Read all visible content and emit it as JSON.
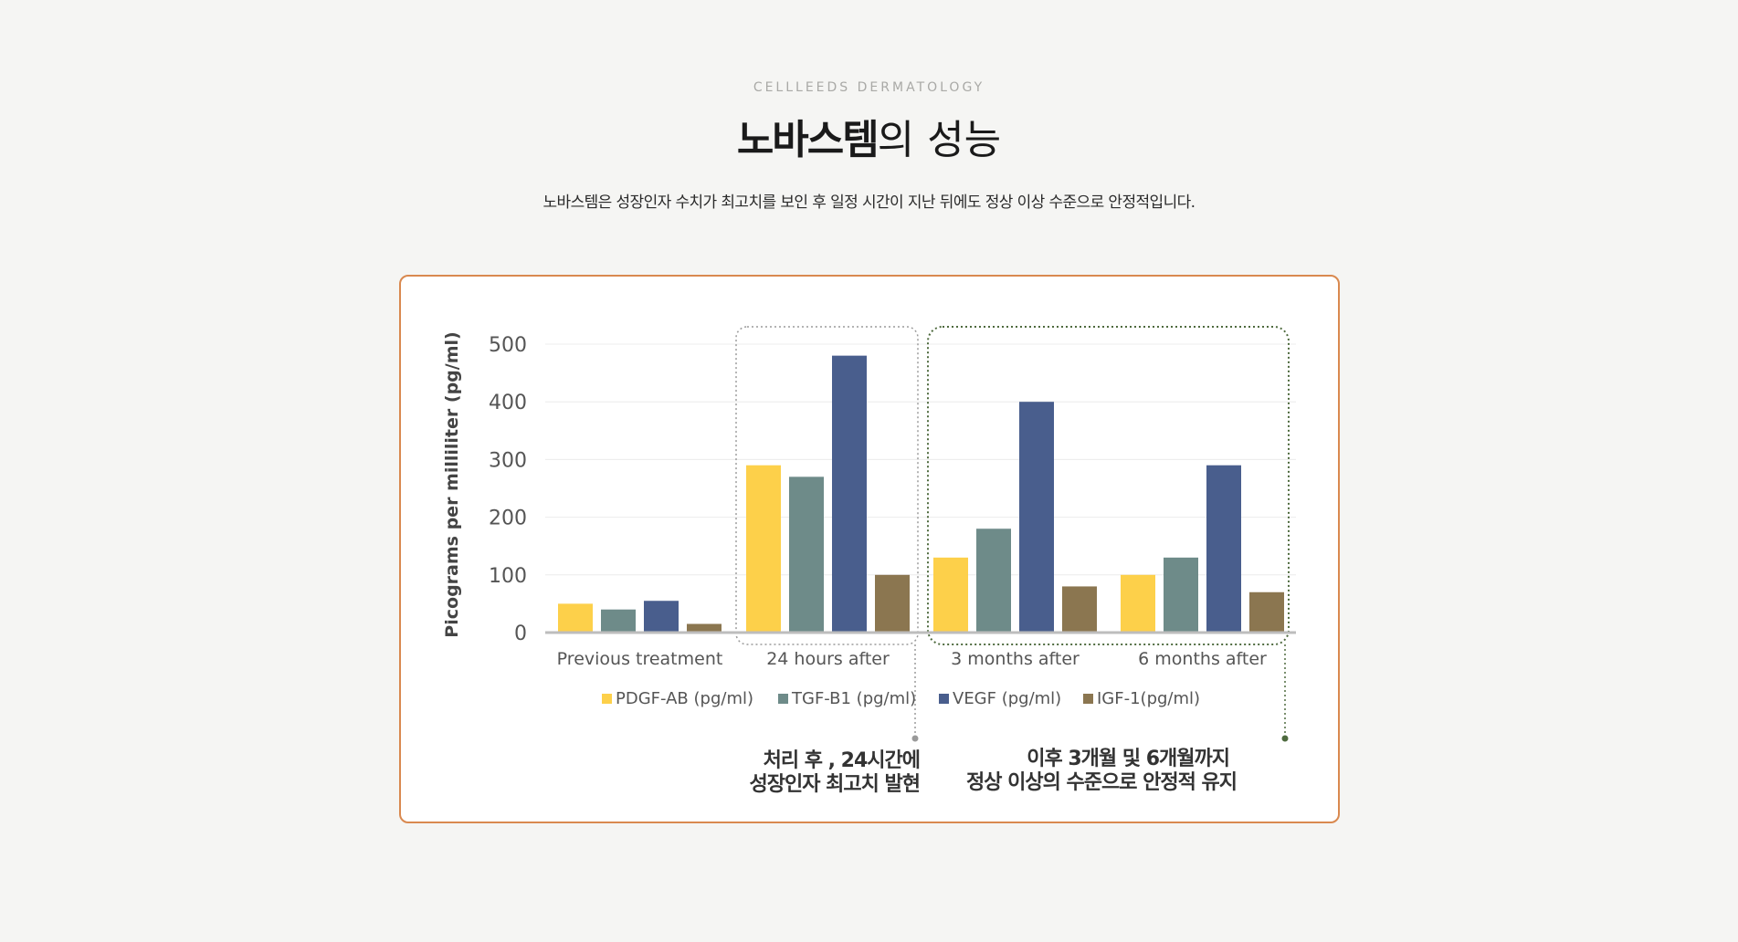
{
  "header": {
    "eyebrow": "CELLLEEDS DERMATOLOGY",
    "title_brand": "노바스템",
    "title_rest": "의 성능",
    "description": "노바스템은 성장인자 수치가 최고치를 보인 후 일정 시간이 지난 뒤에도 정상 이상 수준으로 안정적입니다."
  },
  "chart_data": {
    "type": "bar",
    "title": "",
    "xlabel": "",
    "ylabel": "Picograms per milliliter (pg/ml)",
    "ylim": [
      0,
      500
    ],
    "yticks": [
      0,
      100,
      200,
      300,
      400,
      500
    ],
    "grid": true,
    "legend_position": "bottom",
    "categories": [
      "Previous treatment",
      "24 hours after",
      "3 months after",
      "6 months after"
    ],
    "series": [
      {
        "name": "PDGF-AB (pg/ml)",
        "color": "#fdd04a",
        "values": [
          50,
          290,
          130,
          100
        ]
      },
      {
        "name": "TGF-B1 (pg/ml)",
        "color": "#6e8b89",
        "values": [
          40,
          270,
          180,
          130
        ]
      },
      {
        "name": "VEGF (pg/ml)",
        "color": "#495e8d",
        "values": [
          55,
          480,
          400,
          290
        ]
      },
      {
        "name": "IGF-1(pg/ml)",
        "color": "#8b7650",
        "values": [
          15,
          100,
          80,
          70
        ]
      }
    ],
    "annotations": [
      {
        "line1": "처리 후 , 24시간에",
        "line2": "성장인자 최고치 발현"
      },
      {
        "line1": "이후 3개월 및 6개월까지",
        "line2": "정상 이상의 수준으로 안정적 유지"
      }
    ]
  }
}
